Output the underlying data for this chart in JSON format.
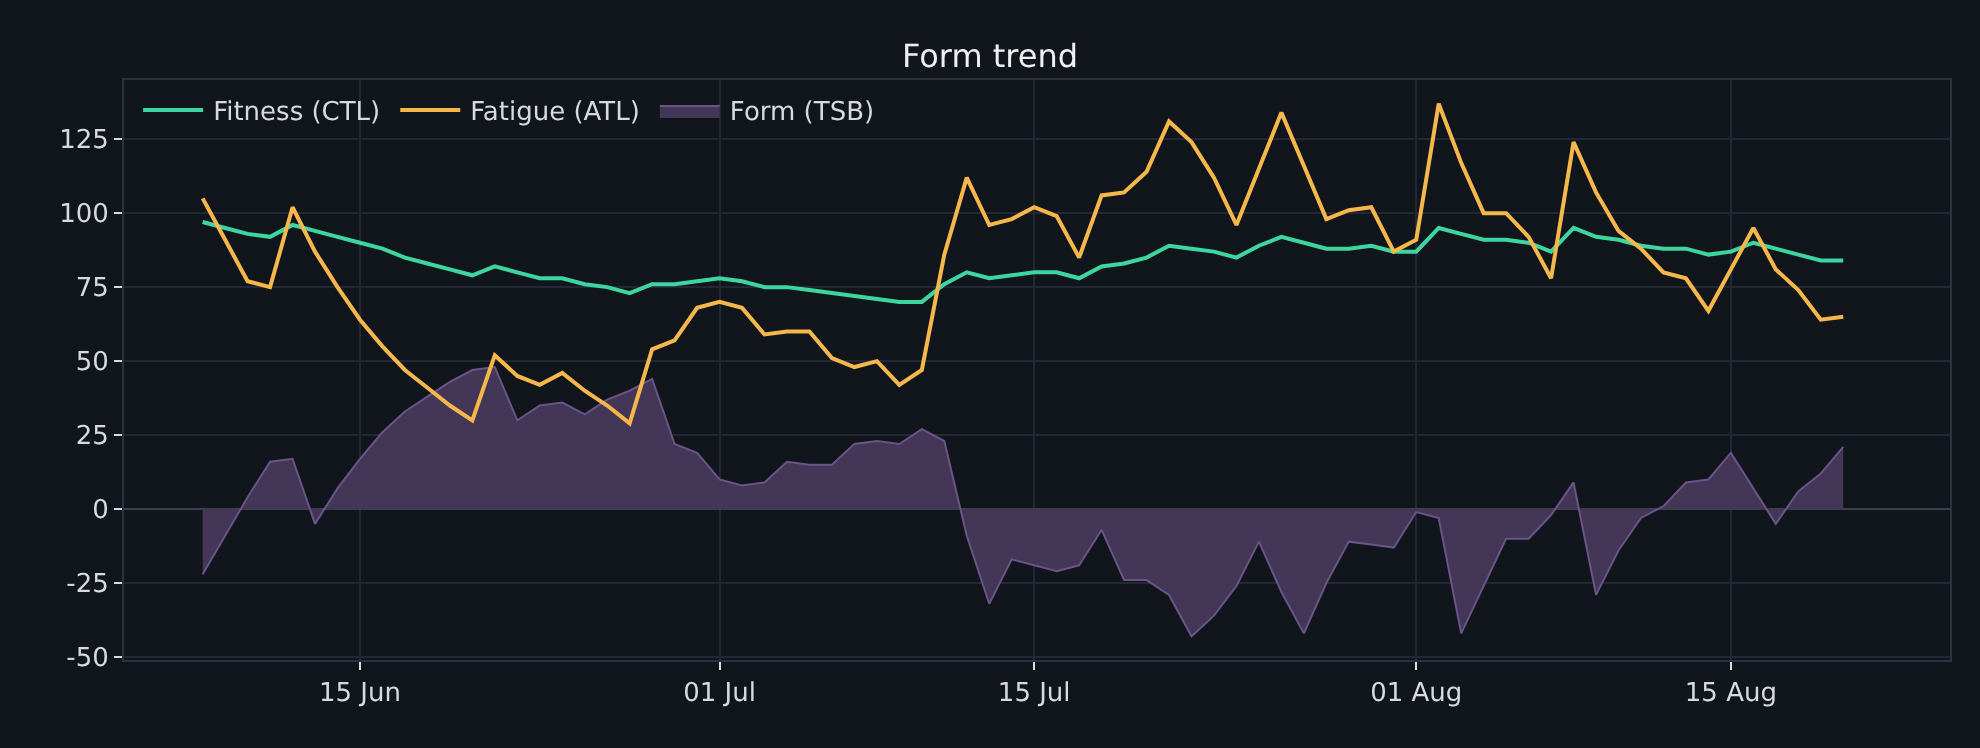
{
  "chart_data": {
    "type": "line",
    "title": "Form trend",
    "x": [
      "--06-08",
      "--06-09",
      "--06-10",
      "--06-11",
      "--06-12",
      "--06-13",
      "--06-14",
      "--06-15",
      "--06-16",
      "--06-17",
      "--06-18",
      "--06-19",
      "--06-20",
      "--06-21",
      "--06-22",
      "--06-23",
      "--06-24",
      "--06-25",
      "--06-26",
      "--06-27",
      "--06-28",
      "--06-29",
      "--06-30",
      "--07-01",
      "--07-02",
      "--07-03",
      "--07-04",
      "--07-05",
      "--07-06",
      "--07-07",
      "--07-08",
      "--07-09",
      "--07-10",
      "--07-11",
      "--07-12",
      "--07-13",
      "--07-14",
      "--07-15",
      "--07-16",
      "--07-17",
      "--07-18",
      "--07-19",
      "--07-20",
      "--07-21",
      "--07-22",
      "--07-23",
      "--07-24",
      "--07-25",
      "--07-26",
      "--07-27",
      "--07-28",
      "--07-29",
      "--07-30",
      "--07-31",
      "--08-01",
      "--08-02",
      "--08-03",
      "--08-04",
      "--08-05",
      "--08-06",
      "--08-07",
      "--08-08",
      "--08-09",
      "--08-10",
      "--08-11",
      "--08-12",
      "--08-13",
      "--08-14",
      "--08-15",
      "--08-16",
      "--08-17",
      "--08-18",
      "--08-19",
      "--08-20"
    ],
    "series": [
      {
        "name": "Fitness (CTL)",
        "type": "line",
        "color": "#3ed6a0",
        "values": [
          97,
          95,
          93,
          92,
          96,
          94,
          92,
          90,
          88,
          85,
          83,
          81,
          79,
          82,
          80,
          78,
          78,
          76,
          75,
          73,
          76,
          76,
          77,
          78,
          77,
          75,
          75,
          74,
          73,
          72,
          71,
          70,
          70,
          76,
          80,
          78,
          79,
          80,
          80,
          78,
          82,
          83,
          85,
          89,
          88,
          87,
          85,
          89,
          92,
          90,
          88,
          88,
          89,
          87,
          87,
          95,
          93,
          91,
          91,
          90,
          87,
          95,
          92,
          91,
          89,
          88,
          88,
          86,
          87,
          90,
          88,
          86,
          84,
          84
        ]
      },
      {
        "name": "Fatigue (ATL)",
        "type": "line",
        "color": "#f7b84b",
        "values": [
          105,
          91,
          77,
          75,
          102,
          87,
          75,
          64,
          55,
          47,
          41,
          35,
          30,
          52,
          45,
          42,
          46,
          40,
          35,
          29,
          54,
          57,
          68,
          70,
          68,
          59,
          60,
          60,
          51,
          48,
          50,
          42,
          47,
          86,
          112,
          96,
          98,
          102,
          99,
          85,
          106,
          107,
          114,
          131,
          124,
          112,
          96,
          115,
          134,
          116,
          98,
          101,
          102,
          87,
          91,
          137,
          117,
          100,
          100,
          92,
          78,
          124,
          107,
          94,
          88,
          80,
          78,
          67,
          81,
          95,
          81,
          74,
          64,
          65
        ]
      },
      {
        "name": "Form (TSB)",
        "type": "area",
        "color": "#433656",
        "values": [
          -22,
          -9,
          4,
          16,
          17,
          -5,
          7,
          17,
          26,
          33,
          38,
          43,
          47,
          48,
          30,
          35,
          36,
          32,
          37,
          40,
          44,
          22,
          19,
          10,
          8,
          9,
          16,
          15,
          15,
          22,
          23,
          22,
          27,
          23,
          -9,
          -32,
          -17,
          -19,
          -21,
          -19,
          -7,
          -24,
          -24,
          -29,
          -43,
          -36,
          -26,
          -11,
          -28,
          -42,
          -25,
          -11,
          -12,
          -13,
          -1,
          -3,
          -42,
          -26,
          -10,
          -10,
          -2,
          9,
          -29,
          -14,
          -3,
          1,
          9,
          10,
          19,
          7,
          -5,
          6,
          12,
          21
        ]
      }
    ],
    "xlim": [
      "--06-04T12:00",
      "--08-24T18:00"
    ],
    "xticks": [
      {
        "value": "--06-15",
        "label": "15 Jun"
      },
      {
        "value": "--07-01",
        "label": "01 Jul"
      },
      {
        "value": "--07-15",
        "label": "15 Jul"
      },
      {
        "value": "--08-01",
        "label": "01 Aug"
      },
      {
        "value": "--08-15",
        "label": "15 Aug"
      }
    ],
    "ylim": [
      -51,
      145
    ],
    "yticks": [
      -50,
      -25,
      0,
      25,
      50,
      75,
      100,
      125
    ],
    "grid": true,
    "legend": "top left",
    "line_style": "solid"
  }
}
